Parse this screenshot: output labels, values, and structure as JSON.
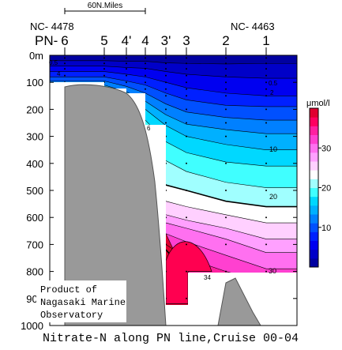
{
  "chart_data": {
    "type": "heatmap",
    "title": "Nitrate-N along PN line,Cruise 00-04",
    "scale_bar_label": "60N.Miles",
    "station_ids": {
      "left": "NC- 4478",
      "right": "NC- 4463"
    },
    "station_prefix": "PN- ",
    "stations": [
      "6",
      "5",
      "4'",
      "4",
      "3'",
      "3",
      "2",
      "1"
    ],
    "y_axis": {
      "ticks": [
        "0m",
        "100",
        "200",
        "300",
        "400",
        "500",
        "600",
        "700",
        "800",
        "900",
        "1000"
      ],
      "range": [
        0,
        1000
      ],
      "unit": "m"
    },
    "colorbar": {
      "unit": "μmol/l",
      "range": [
        0,
        40
      ],
      "ticks": [
        "10",
        "20",
        "30"
      ],
      "colors": [
        "#0000a0",
        "#0000c8",
        "#0000f0",
        "#0020ff",
        "#0050ff",
        "#0080ff",
        "#00b0ff",
        "#00d8ff",
        "#40ffff",
        "#a0ffff",
        "#ffffff",
        "#ffd0ff",
        "#ffa0ff",
        "#ff70f0",
        "#ff40d0",
        "#ff20a0",
        "#ff0060",
        "#e00030"
      ]
    },
    "contour_labels": [
      "0.5",
      "4",
      "0.5",
      "2",
      "6",
      "10",
      "20",
      "30",
      "34"
    ],
    "note": [
      "Product of",
      "Nagasaki Marine",
      "Observatory"
    ]
  }
}
